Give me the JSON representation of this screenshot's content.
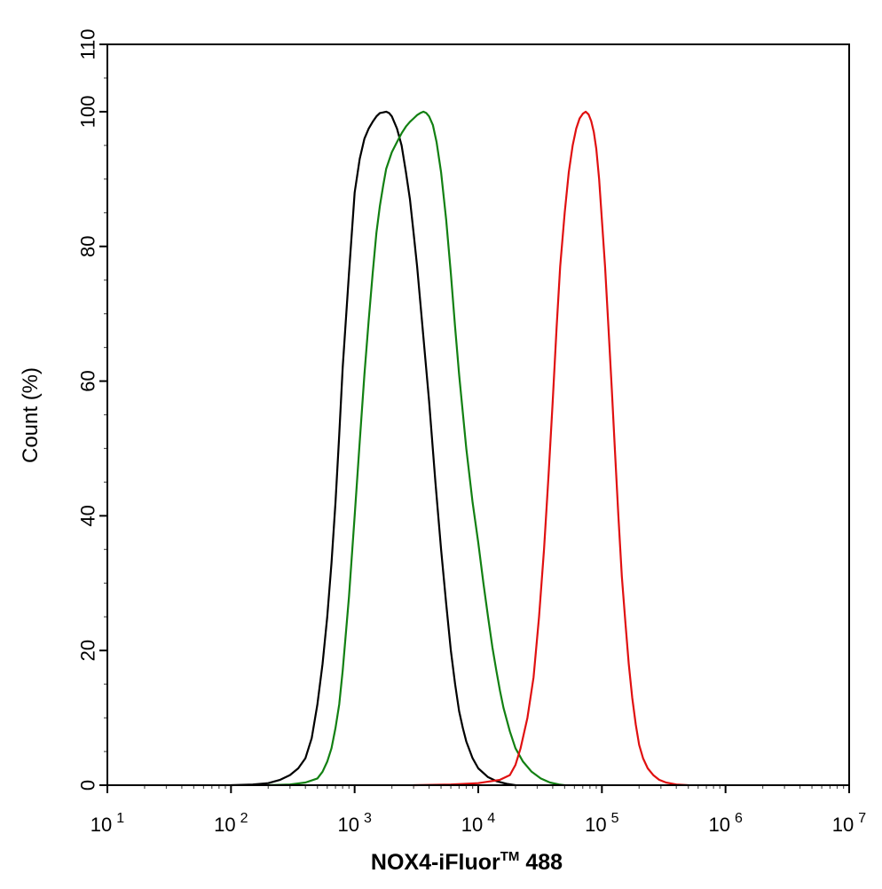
{
  "chart_data": {
    "type": "line",
    "title": "",
    "xlabel": "NOX4-iFluor",
    "xlabel_mark": "TM",
    "xlabel_suffix": " 488",
    "ylabel": "Count  (%)",
    "xscale": "log",
    "xlim": [
      10,
      10000000
    ],
    "ylim": [
      0,
      110
    ],
    "grid": false,
    "legend": "none",
    "x_ticks": [
      {
        "base": "10",
        "exp": "1",
        "value": 10
      },
      {
        "base": "10",
        "exp": "2",
        "value": 100
      },
      {
        "base": "10",
        "exp": "3",
        "value": 1000
      },
      {
        "base": "10",
        "exp": "4",
        "value": 10000
      },
      {
        "base": "10",
        "exp": "5",
        "value": 100000
      },
      {
        "base": "10",
        "exp": "6",
        "value": 1000000
      },
      {
        "base": "10",
        "exp": "7",
        "value": 10000000
      }
    ],
    "y_ticks": [
      "0",
      "20",
      "40",
      "60",
      "80",
      "100",
      "110"
    ],
    "y_tick_values": [
      0,
      20,
      40,
      60,
      80,
      100,
      110
    ],
    "series": [
      {
        "color": "#000000",
        "points": [
          [
            100,
            0
          ],
          [
            150,
            0.1
          ],
          [
            200,
            0.3
          ],
          [
            250,
            0.8
          ],
          [
            300,
            1.5
          ],
          [
            350,
            2.5
          ],
          [
            400,
            4
          ],
          [
            450,
            7
          ],
          [
            500,
            12
          ],
          [
            550,
            18
          ],
          [
            600,
            25
          ],
          [
            650,
            33
          ],
          [
            700,
            42
          ],
          [
            750,
            52
          ],
          [
            800,
            62
          ],
          [
            900,
            76
          ],
          [
            1000,
            88
          ],
          [
            1100,
            93
          ],
          [
            1200,
            96
          ],
          [
            1300,
            97.5
          ],
          [
            1400,
            98.5
          ],
          [
            1500,
            99.3
          ],
          [
            1600,
            99.8
          ],
          [
            1700,
            99.9
          ],
          [
            1800,
            100
          ],
          [
            1900,
            99.8
          ],
          [
            2000,
            99.3
          ],
          [
            2200,
            97.5
          ],
          [
            2400,
            95
          ],
          [
            2600,
            91
          ],
          [
            2800,
            87
          ],
          [
            3000,
            82
          ],
          [
            3200,
            77
          ],
          [
            3500,
            69
          ],
          [
            4000,
            57
          ],
          [
            4500,
            45
          ],
          [
            5000,
            35
          ],
          [
            5500,
            27
          ],
          [
            6000,
            20
          ],
          [
            6500,
            15
          ],
          [
            7000,
            11
          ],
          [
            7500,
            8.5
          ],
          [
            8000,
            6.5
          ],
          [
            9000,
            4
          ],
          [
            10000,
            2.5
          ],
          [
            12000,
            1.2
          ],
          [
            14000,
            0.6
          ],
          [
            17000,
            0.2
          ],
          [
            20000,
            0
          ]
        ]
      },
      {
        "color": "#128012",
        "points": [
          [
            200,
            0
          ],
          [
            300,
            0.1
          ],
          [
            400,
            0.4
          ],
          [
            500,
            1
          ],
          [
            550,
            2
          ],
          [
            600,
            3.5
          ],
          [
            650,
            5.5
          ],
          [
            700,
            8.5
          ],
          [
            750,
            12
          ],
          [
            800,
            17
          ],
          [
            900,
            28
          ],
          [
            1000,
            40
          ],
          [
            1100,
            51
          ],
          [
            1200,
            61
          ],
          [
            1300,
            69
          ],
          [
            1400,
            76
          ],
          [
            1500,
            82
          ],
          [
            1600,
            86
          ],
          [
            1700,
            89
          ],
          [
            1800,
            91.5
          ],
          [
            2000,
            94
          ],
          [
            2200,
            95.5
          ],
          [
            2400,
            96.8
          ],
          [
            2600,
            97.8
          ],
          [
            2800,
            98.5
          ],
          [
            3000,
            99
          ],
          [
            3200,
            99.5
          ],
          [
            3400,
            99.8
          ],
          [
            3600,
            100
          ],
          [
            3800,
            99.8
          ],
          [
            4000,
            99.3
          ],
          [
            4300,
            98
          ],
          [
            4600,
            95.5
          ],
          [
            5000,
            91
          ],
          [
            5500,
            84
          ],
          [
            6000,
            76
          ],
          [
            6500,
            68
          ],
          [
            7000,
            61
          ],
          [
            8000,
            50
          ],
          [
            9000,
            42
          ],
          [
            10000,
            36
          ],
          [
            11000,
            30
          ],
          [
            12000,
            25
          ],
          [
            13000,
            20.5
          ],
          [
            14000,
            17
          ],
          [
            15000,
            14
          ],
          [
            16000,
            11.5
          ],
          [
            18000,
            8
          ],
          [
            20000,
            5.5
          ],
          [
            23000,
            3.5
          ],
          [
            27000,
            2
          ],
          [
            32000,
            1
          ],
          [
            38000,
            0.4
          ],
          [
            45000,
            0.1
          ],
          [
            50000,
            0
          ]
        ]
      },
      {
        "color": "#e01010",
        "points": [
          [
            3000,
            0
          ],
          [
            6000,
            0.1
          ],
          [
            10000,
            0.3
          ],
          [
            15000,
            0.8
          ],
          [
            18000,
            1.5
          ],
          [
            20000,
            3
          ],
          [
            22000,
            5.5
          ],
          [
            25000,
            10
          ],
          [
            28000,
            16
          ],
          [
            31000,
            25
          ],
          [
            34000,
            35
          ],
          [
            37000,
            46
          ],
          [
            40000,
            57
          ],
          [
            43000,
            68
          ],
          [
            46000,
            77
          ],
          [
            50000,
            85
          ],
          [
            54000,
            91
          ],
          [
            58000,
            95
          ],
          [
            62000,
            97.5
          ],
          [
            66000,
            99
          ],
          [
            70000,
            99.7
          ],
          [
            74000,
            100
          ],
          [
            78000,
            99.6
          ],
          [
            82000,
            98.6
          ],
          [
            86000,
            97
          ],
          [
            90000,
            94.5
          ],
          [
            95000,
            90
          ],
          [
            100000,
            84
          ],
          [
            106000,
            77
          ],
          [
            113000,
            68
          ],
          [
            120000,
            59
          ],
          [
            128000,
            49
          ],
          [
            136000,
            40
          ],
          [
            145000,
            31
          ],
          [
            155000,
            24
          ],
          [
            165000,
            18
          ],
          [
            176000,
            13
          ],
          [
            188000,
            9
          ],
          [
            200000,
            6
          ],
          [
            215000,
            4
          ],
          [
            235000,
            2.5
          ],
          [
            260000,
            1.5
          ],
          [
            290000,
            0.8
          ],
          [
            330000,
            0.4
          ],
          [
            400000,
            0.1
          ],
          [
            500000,
            0
          ]
        ]
      }
    ]
  }
}
